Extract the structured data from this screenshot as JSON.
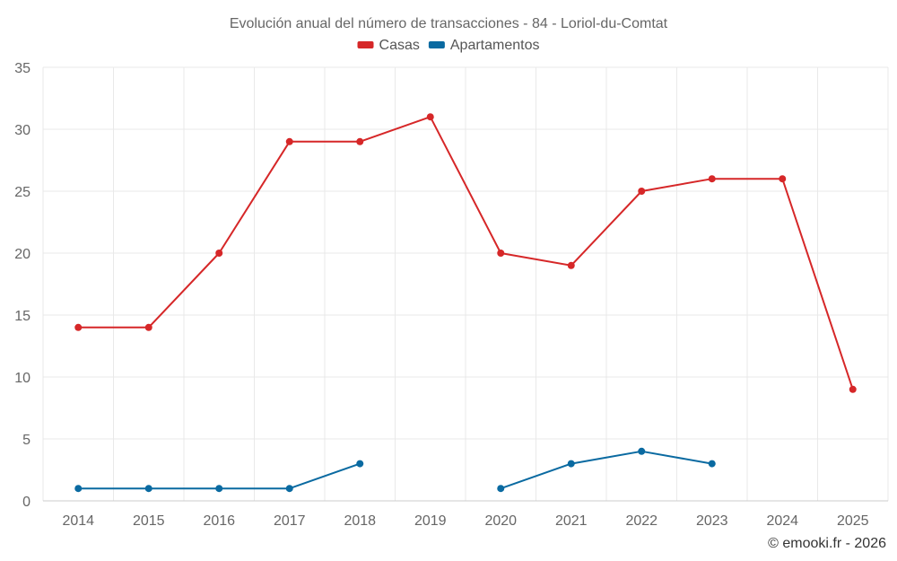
{
  "chart_data": {
    "type": "line",
    "title": "Evolución anual del número de transacciones - 84 - Loriol-du-Comtat",
    "categories": [
      "2014",
      "2015",
      "2016",
      "2017",
      "2018",
      "2019",
      "2020",
      "2021",
      "2022",
      "2023",
      "2024",
      "2025"
    ],
    "series": [
      {
        "name": "Casas",
        "color": "#d62728",
        "values": [
          14,
          14,
          20,
          29,
          29,
          31,
          20,
          19,
          25,
          26,
          26,
          9
        ]
      },
      {
        "name": "Apartamentos",
        "color": "#0a6aa1",
        "values": [
          1,
          1,
          1,
          1,
          3,
          null,
          1,
          3,
          4,
          3,
          null,
          null
        ]
      }
    ],
    "ylim": [
      0,
      35
    ],
    "yticks": [
      0,
      5,
      10,
      15,
      20,
      25,
      30,
      35
    ],
    "grid": true,
    "legend": "top-center",
    "credit": "© emooki.fr - 2026"
  }
}
